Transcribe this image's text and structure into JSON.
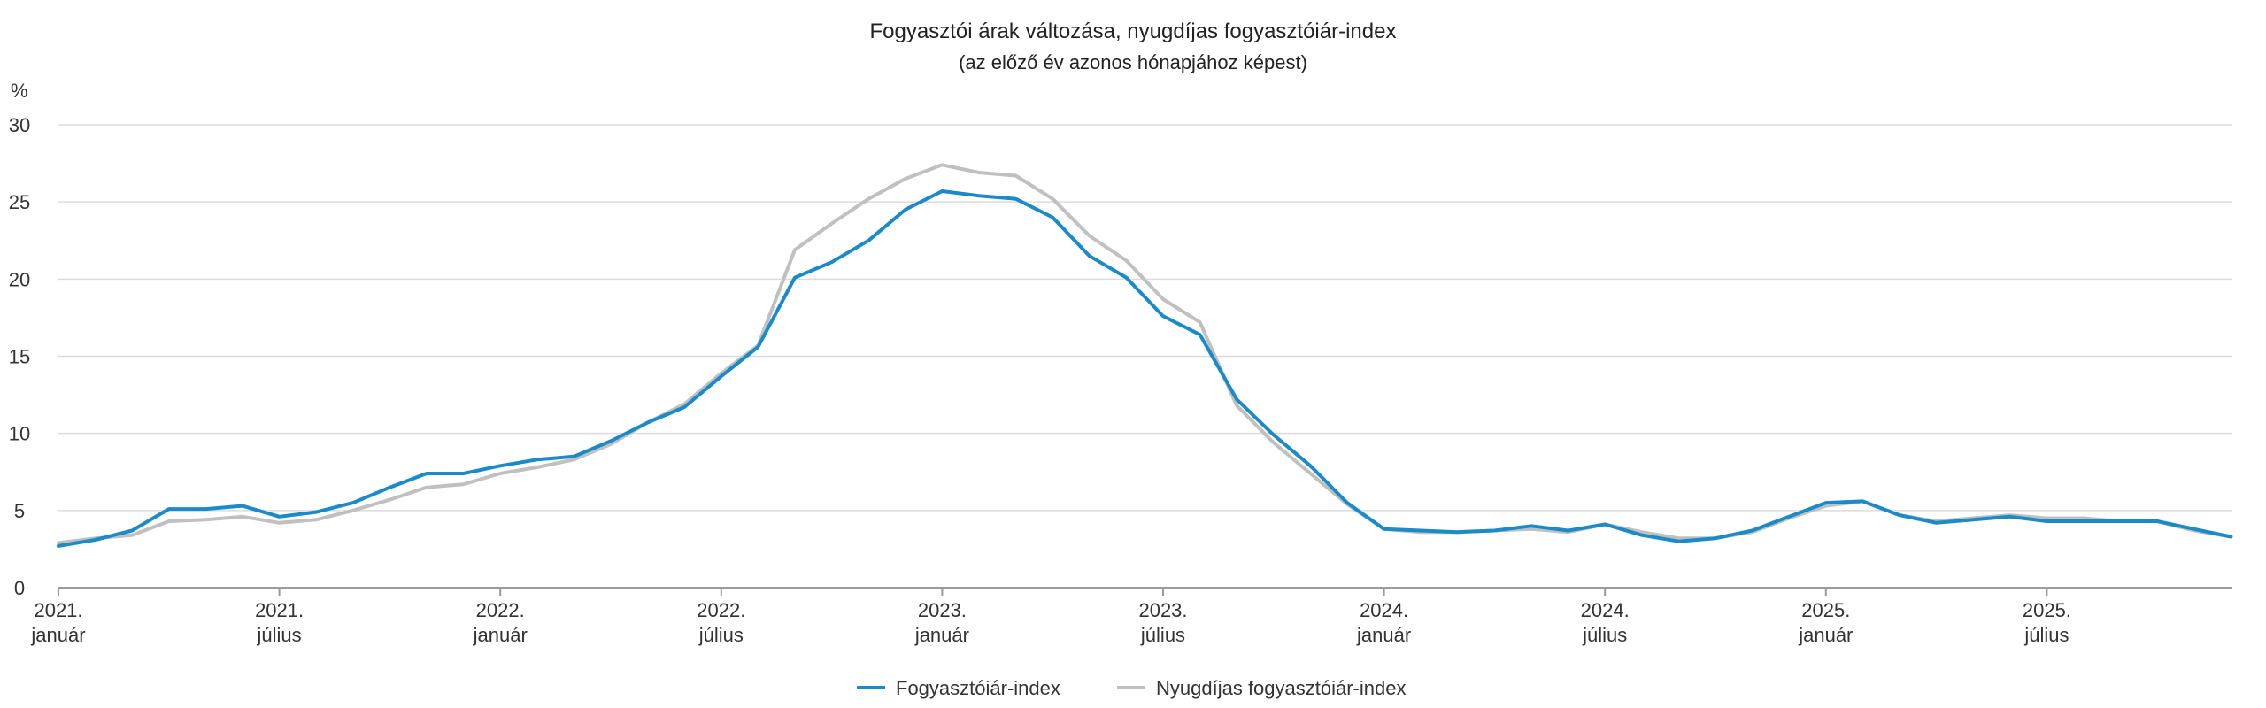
{
  "chart_data": {
    "type": "line",
    "title": "Fogyasztói árak változása, nyugdíjas fogyasztóiár-index",
    "subtitle": "(az előző év azonos hónapjához képest)",
    "ylabel": "%",
    "ylim": [
      0,
      30
    ],
    "yticks": [
      0,
      5,
      10,
      15,
      20,
      25,
      30
    ],
    "grid": true,
    "legend_position": "bottom",
    "x_start": "2021-01",
    "x_labels": [
      {
        "index": 0,
        "line1": "2021.",
        "line2": "január"
      },
      {
        "index": 6,
        "line1": "2021.",
        "line2": "július"
      },
      {
        "index": 12,
        "line1": "2022.",
        "line2": "január"
      },
      {
        "index": 18,
        "line1": "2022.",
        "line2": "július"
      },
      {
        "index": 24,
        "line1": "2023.",
        "line2": "január"
      },
      {
        "index": 30,
        "line1": "2023.",
        "line2": "július"
      },
      {
        "index": 36,
        "line1": "2024.",
        "line2": "január"
      },
      {
        "index": 42,
        "line1": "2024.",
        "line2": "július"
      },
      {
        "index": 48,
        "line1": "2025.",
        "line2": "január"
      },
      {
        "index": 54,
        "line1": "2025.",
        "line2": "július"
      }
    ],
    "series": [
      {
        "name": "Fogyasztóiár-index",
        "color": "#1b8ac8",
        "values": [
          2.7,
          3.1,
          3.7,
          5.1,
          5.1,
          5.3,
          4.6,
          4.9,
          5.5,
          6.5,
          7.4,
          7.4,
          7.9,
          8.3,
          8.5,
          9.5,
          10.7,
          11.7,
          13.7,
          15.6,
          20.1,
          21.1,
          22.5,
          24.5,
          25.7,
          25.4,
          25.2,
          24.0,
          21.5,
          20.1,
          17.6,
          16.4,
          12.2,
          9.9,
          7.9,
          5.5,
          3.8,
          3.7,
          3.6,
          3.7,
          4.0,
          3.7,
          4.1,
          3.4,
          3.0,
          3.2,
          3.7,
          4.6,
          5.5,
          5.6,
          4.7,
          4.2,
          4.4,
          4.6,
          4.3,
          4.3,
          4.3,
          4.3,
          3.8,
          3.3
        ]
      },
      {
        "name": "Nyugdíjas fogyasztóiár-index",
        "color": "#c0c0c0",
        "values": [
          2.9,
          3.2,
          3.4,
          4.3,
          4.4,
          4.6,
          4.2,
          4.4,
          5.0,
          5.7,
          6.5,
          6.7,
          7.4,
          7.8,
          8.3,
          9.3,
          10.7,
          11.9,
          13.9,
          15.7,
          21.9,
          23.6,
          25.2,
          26.5,
          27.4,
          26.9,
          26.7,
          25.2,
          22.8,
          21.2,
          18.7,
          17.2,
          11.8,
          9.4,
          7.4,
          5.4,
          3.8,
          3.6,
          3.6,
          3.7,
          3.8,
          3.6,
          4.1,
          3.6,
          3.2,
          3.2,
          3.6,
          4.5,
          5.3,
          5.6,
          4.7,
          4.3,
          4.5,
          4.7,
          4.5,
          4.5,
          4.3,
          4.3,
          3.7,
          3.3
        ]
      }
    ]
  }
}
